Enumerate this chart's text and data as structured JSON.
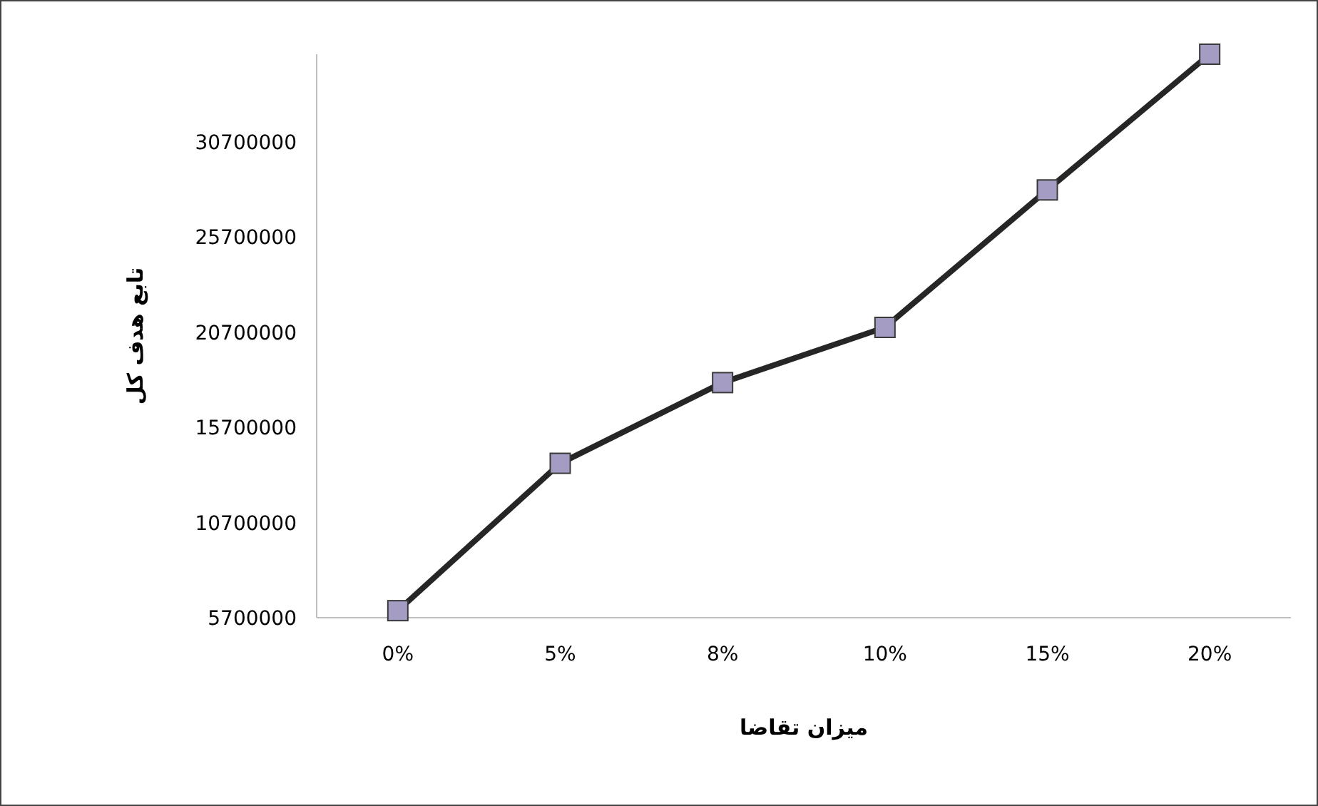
{
  "chart_data": {
    "type": "line",
    "xlabel": "میزان تقاضا",
    "ylabel": "تابع هدف کل",
    "categories": [
      "0%",
      "5%",
      "8%",
      "10%",
      "15%",
      "20%"
    ],
    "series": [
      {
        "color": "#262626",
        "values": [
          6070000,
          13810000,
          18050000,
          20950000,
          28170000,
          35300000
        ]
      }
    ],
    "marker": "square",
    "line_style": "solid",
    "grid": false,
    "legend": false,
    "ylim": [
      5700000,
      35300000
    ],
    "yticks": [
      5700000,
      10700000,
      15700000,
      20700000,
      25700000,
      30700000
    ]
  }
}
